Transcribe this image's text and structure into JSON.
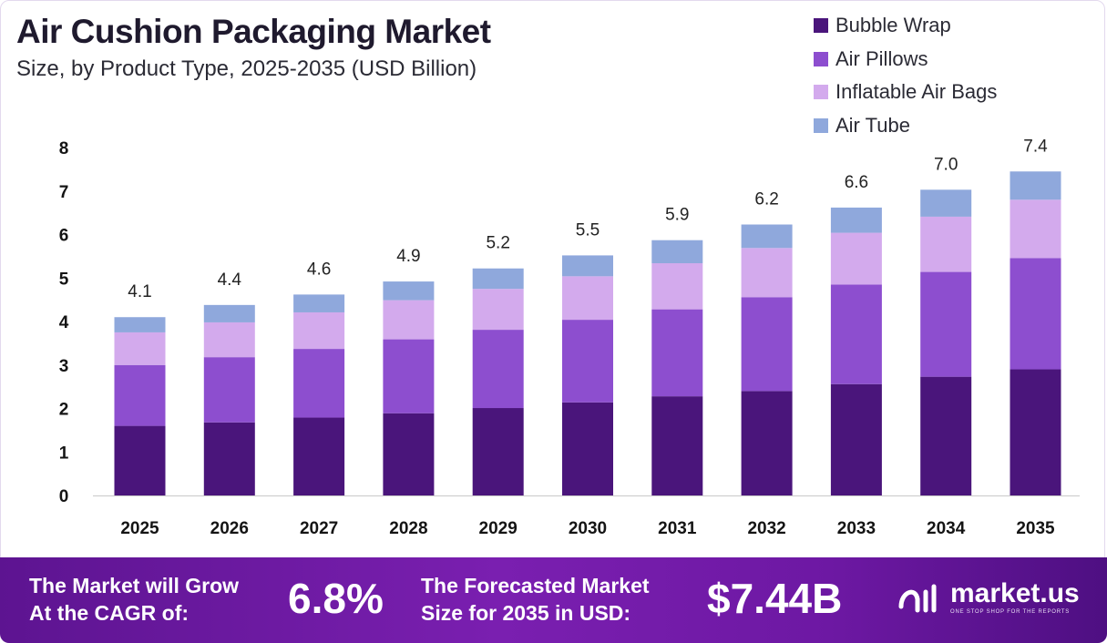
{
  "title": "Air Cushion Packaging Market",
  "subtitle": "Size, by Product Type, 2025-2035 (USD Billion)",
  "legend": [
    {
      "label": "Bubble Wrap",
      "color": "#4a157b"
    },
    {
      "label": "Air Pillows",
      "color": "#8d4ecf"
    },
    {
      "label": "Inflatable Air Bags",
      "color": "#d3aaed"
    },
    {
      "label": "Air Tube",
      "color": "#8fa8dc"
    }
  ],
  "chart_data": {
    "type": "bar",
    "stacked": true,
    "categories": [
      "2025",
      "2026",
      "2027",
      "2028",
      "2029",
      "2030",
      "2031",
      "2032",
      "2033",
      "2034",
      "2035"
    ],
    "totals_labels": [
      "4.1",
      "4.4",
      "4.6",
      "4.9",
      "5.2",
      "5.5",
      "5.9",
      "6.2",
      "6.6",
      "7.0",
      "7.4"
    ],
    "series": [
      {
        "name": "Bubble Wrap",
        "color": "#4a157b",
        "values": [
          1.6,
          1.68,
          1.79,
          1.89,
          2.01,
          2.14,
          2.28,
          2.4,
          2.56,
          2.73,
          2.9
        ]
      },
      {
        "name": "Air Pillows",
        "color": "#8d4ecf",
        "values": [
          1.4,
          1.5,
          1.58,
          1.7,
          1.8,
          1.9,
          2.0,
          2.16,
          2.29,
          2.41,
          2.56
        ]
      },
      {
        "name": "Inflatable Air Bags",
        "color": "#d3aaed",
        "values": [
          0.75,
          0.8,
          0.84,
          0.9,
          0.94,
          1.0,
          1.06,
          1.13,
          1.19,
          1.27,
          1.34
        ]
      },
      {
        "name": "Air Tube",
        "color": "#8fa8dc",
        "values": [
          0.35,
          0.4,
          0.41,
          0.43,
          0.47,
          0.48,
          0.53,
          0.54,
          0.58,
          0.62,
          0.65
        ]
      }
    ],
    "yticks": [
      0,
      1,
      2,
      3,
      4,
      5,
      6,
      7,
      8
    ],
    "ylim": [
      0,
      8
    ],
    "grid": false,
    "legend_position": "top-right"
  },
  "footer": {
    "cagr_text_line1": "The Market will Grow",
    "cagr_text_line2": "At the CAGR of:",
    "cagr_value": "6.8%",
    "forecast_text_line1": "The Forecasted Market",
    "forecast_text_line2": "Size for 2035 in USD:",
    "forecast_value": "$7.44B",
    "brand_name": "market.us",
    "brand_tagline": "ONE STOP SHOP FOR THE REPORTS"
  }
}
